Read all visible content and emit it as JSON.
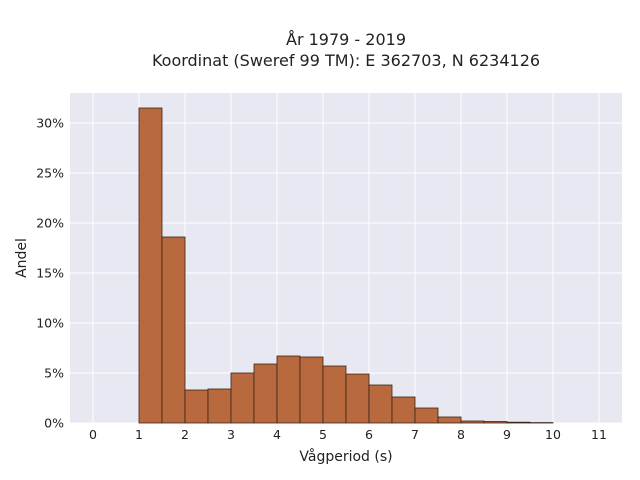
{
  "chart_data": {
    "type": "bar",
    "title_line1": "År 1979 - 2019",
    "title_line2": "Koordinat (Sweref 99 TM): E 362703, N 6234126",
    "xlabel": "Vågperiod (s)",
    "ylabel": "Andel",
    "xlim": [
      -0.5,
      11.5
    ],
    "ylim": [
      0,
      33
    ],
    "grid": true,
    "bin_width": 0.5,
    "x_ticks": [
      0,
      1,
      2,
      3,
      4,
      5,
      6,
      7,
      8,
      9,
      10,
      11
    ],
    "y_ticks": [
      0,
      5,
      10,
      15,
      20,
      25,
      30
    ],
    "y_tick_suffix": "%",
    "bins": [
      {
        "x0": 1.0,
        "value": 31.5
      },
      {
        "x0": 1.5,
        "value": 18.6
      },
      {
        "x0": 2.0,
        "value": 3.3
      },
      {
        "x0": 2.5,
        "value": 3.4
      },
      {
        "x0": 3.0,
        "value": 5.0
      },
      {
        "x0": 3.5,
        "value": 5.9
      },
      {
        "x0": 4.0,
        "value": 6.7
      },
      {
        "x0": 4.5,
        "value": 6.6
      },
      {
        "x0": 5.0,
        "value": 5.7
      },
      {
        "x0": 5.5,
        "value": 4.9
      },
      {
        "x0": 6.0,
        "value": 3.8
      },
      {
        "x0": 6.5,
        "value": 2.6
      },
      {
        "x0": 7.0,
        "value": 1.5
      },
      {
        "x0": 7.5,
        "value": 0.6
      },
      {
        "x0": 8.0,
        "value": 0.2
      },
      {
        "x0": 8.5,
        "value": 0.15
      },
      {
        "x0": 9.0,
        "value": 0.08
      },
      {
        "x0": 9.5,
        "value": 0.04
      }
    ],
    "colors": {
      "bar_fill": "#b8693e",
      "bar_stroke": "#3a2418",
      "plot_bg": "#e8e8f2",
      "grid": "#ffffff"
    }
  }
}
